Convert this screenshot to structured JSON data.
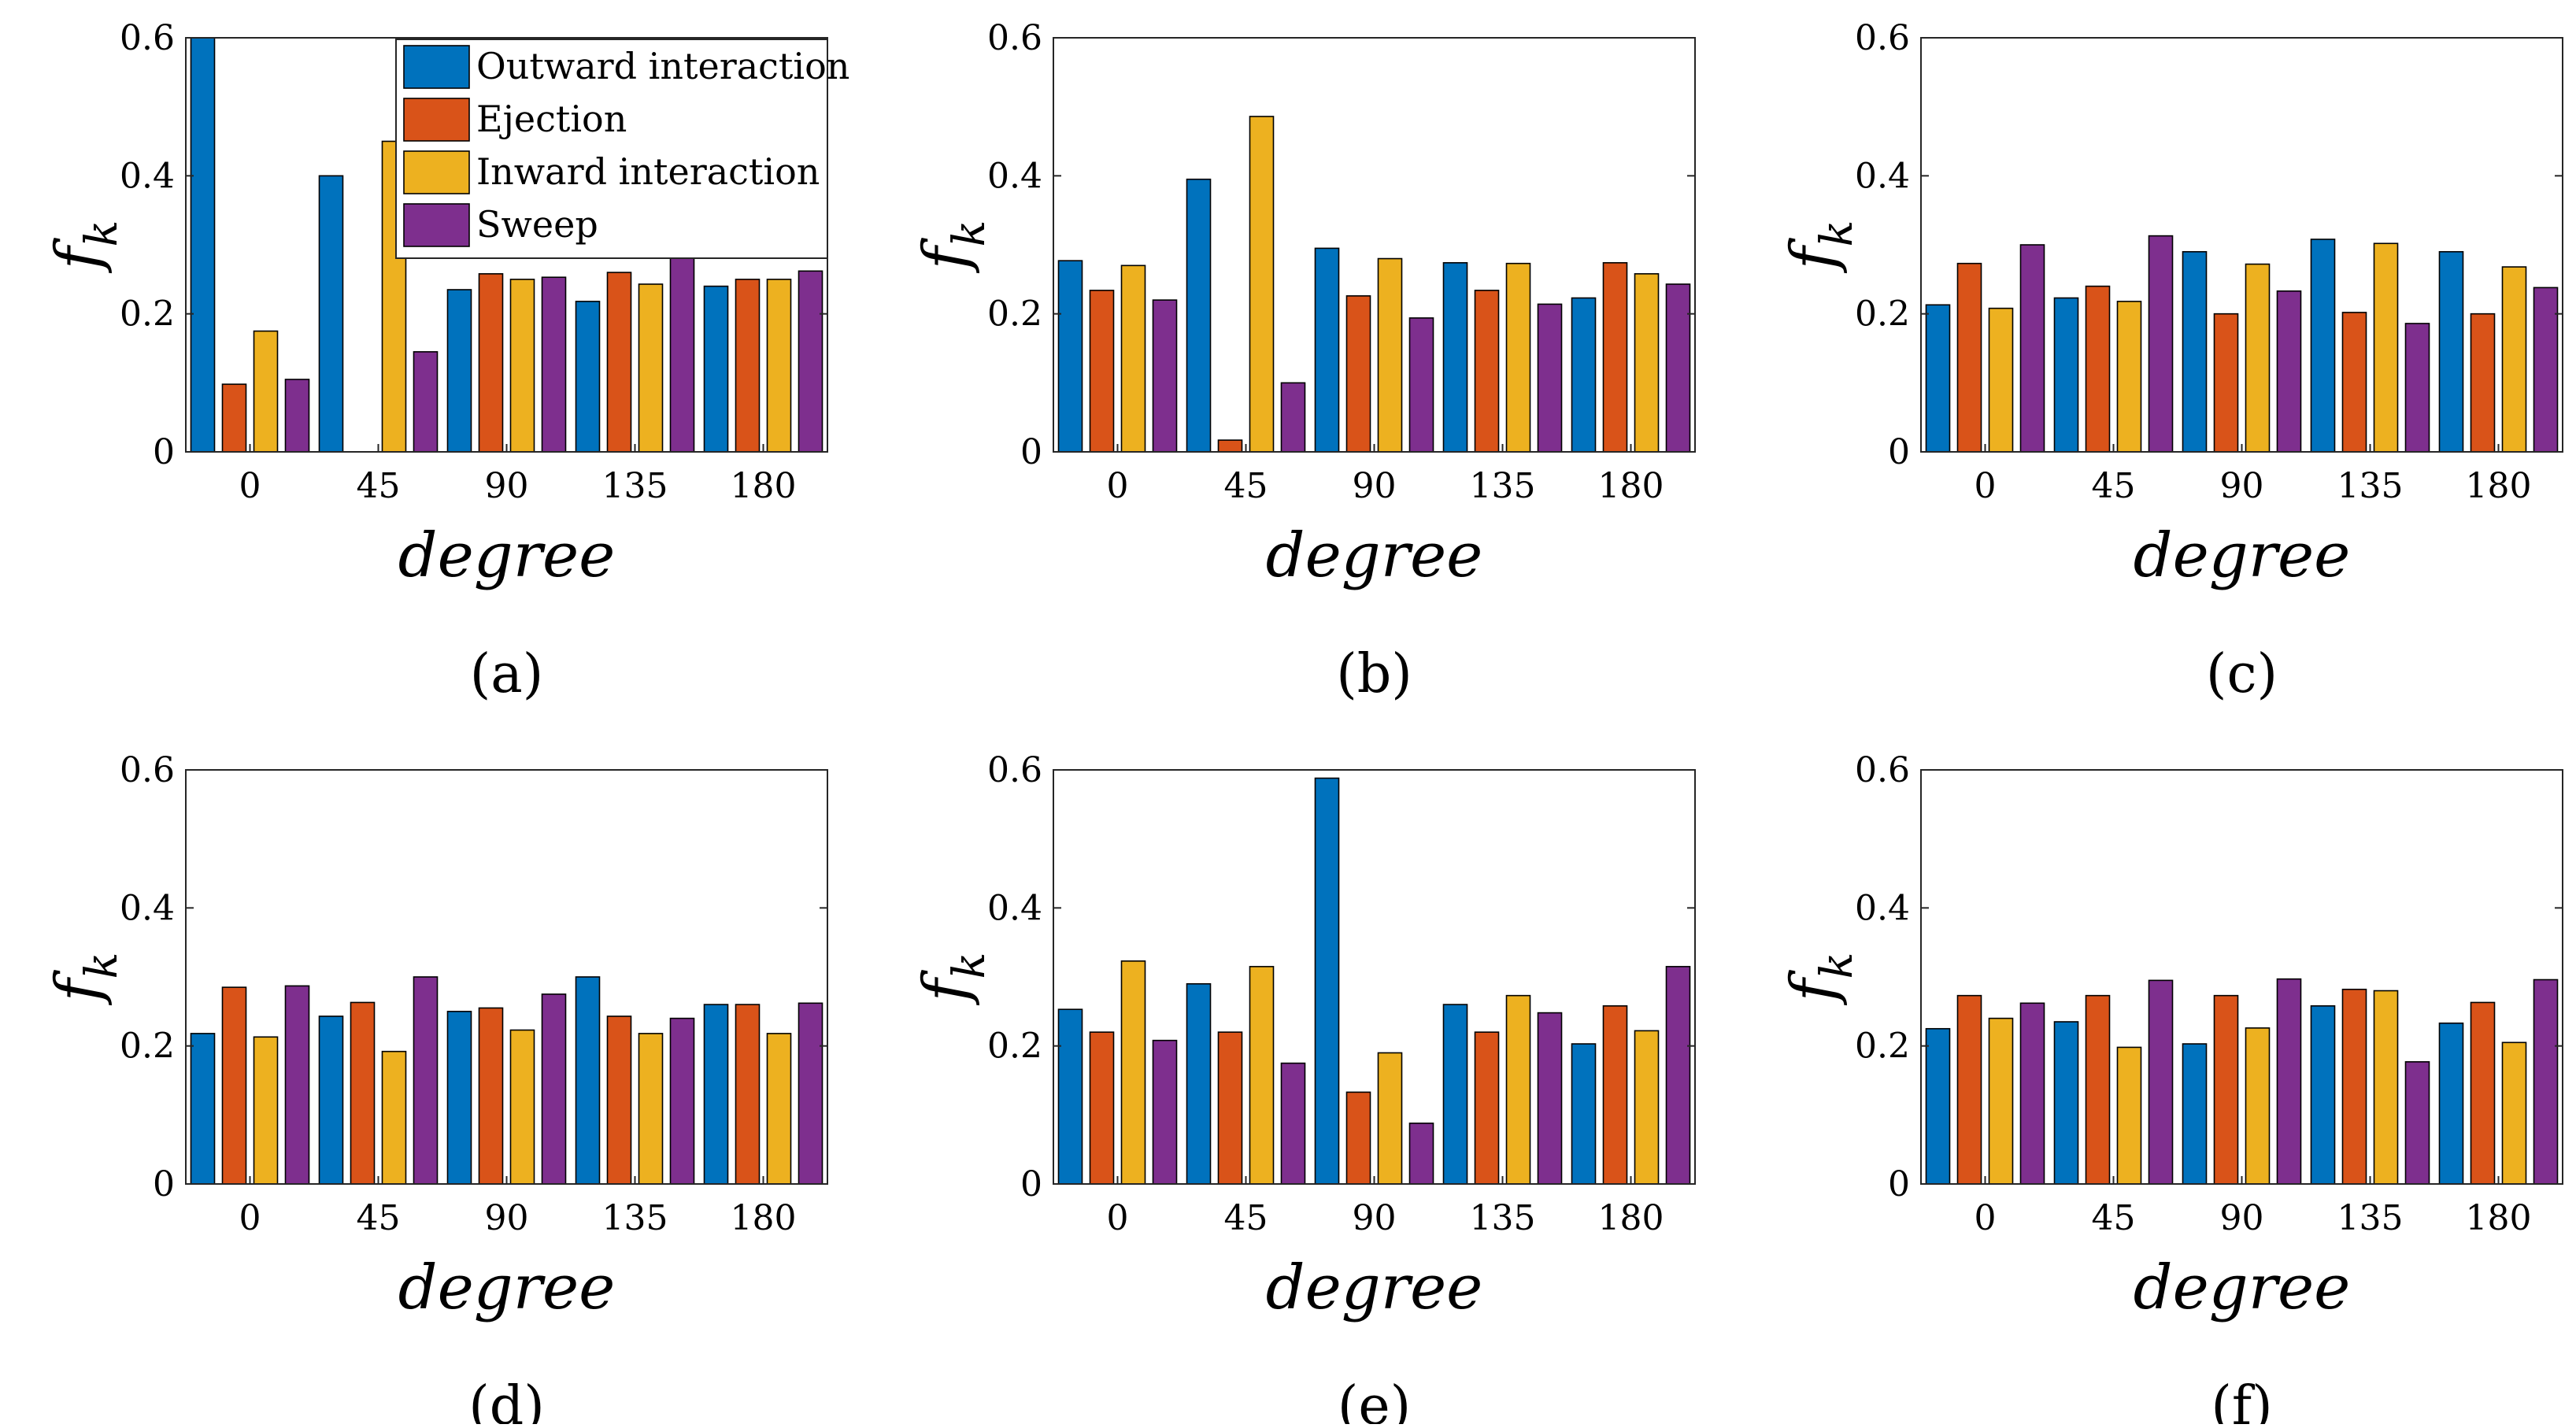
{
  "figure": {
    "series_names": [
      "Outward interaction",
      "Ejection",
      "Inward interaction",
      "Sweep"
    ],
    "colors": [
      "#0072BD",
      "#D95319",
      "#EDB120",
      "#7E2F8E"
    ]
  },
  "chart_data": [
    {
      "type": "bar",
      "caption": "(a)",
      "xlabel": "degree",
      "ylabel": "f_k",
      "ylabel_main": "f",
      "ylabel_sub": "k",
      "categories": [
        "0",
        "45",
        "90",
        "135",
        "180"
      ],
      "ylim": [
        0,
        0.6
      ],
      "yticks": [
        "0",
        "0.2",
        "0.4",
        "0.6"
      ],
      "legend": "top-right",
      "series": [
        {
          "name": "Outward interaction",
          "values": [
            0.6,
            0.4,
            0.235,
            0.218,
            0.24
          ]
        },
        {
          "name": "Ejection",
          "values": [
            0.098,
            0.0,
            0.258,
            0.26,
            0.25
          ]
        },
        {
          "name": "Inward interaction",
          "values": [
            0.175,
            0.45,
            0.25,
            0.243,
            0.25
          ]
        },
        {
          "name": "Sweep",
          "values": [
            0.105,
            0.145,
            0.253,
            0.283,
            0.262
          ]
        }
      ]
    },
    {
      "type": "bar",
      "caption": "(b)",
      "xlabel": "degree",
      "ylabel": "f_k",
      "ylabel_main": "f",
      "ylabel_sub": "k",
      "categories": [
        "0",
        "45",
        "90",
        "135",
        "180"
      ],
      "ylim": [
        0,
        0.6
      ],
      "yticks": [
        "0",
        "0.2",
        "0.4",
        "0.6"
      ],
      "series": [
        {
          "name": "Outward interaction",
          "values": [
            0.277,
            0.395,
            0.295,
            0.274,
            0.223
          ]
        },
        {
          "name": "Ejection",
          "values": [
            0.234,
            0.017,
            0.226,
            0.234,
            0.274
          ]
        },
        {
          "name": "Inward interaction",
          "values": [
            0.27,
            0.486,
            0.28,
            0.273,
            0.258
          ]
        },
        {
          "name": "Sweep",
          "values": [
            0.22,
            0.1,
            0.194,
            0.214,
            0.243
          ]
        }
      ]
    },
    {
      "type": "bar",
      "caption": "(c)",
      "xlabel": "degree",
      "ylabel": "f_k",
      "ylabel_main": "f",
      "ylabel_sub": "k",
      "categories": [
        "0",
        "45",
        "90",
        "135",
        "180"
      ],
      "ylim": [
        0,
        0.6
      ],
      "yticks": [
        "0",
        "0.2",
        "0.4",
        "0.6"
      ],
      "series": [
        {
          "name": "Outward interaction",
          "values": [
            0.213,
            0.223,
            0.29,
            0.308,
            0.29
          ]
        },
        {
          "name": "Ejection",
          "values": [
            0.273,
            0.24,
            0.2,
            0.202,
            0.2
          ]
        },
        {
          "name": "Inward interaction",
          "values": [
            0.208,
            0.218,
            0.272,
            0.302,
            0.268
          ]
        },
        {
          "name": "Sweep",
          "values": [
            0.3,
            0.313,
            0.233,
            0.186,
            0.238
          ]
        }
      ]
    },
    {
      "type": "bar",
      "caption": "(d)",
      "xlabel": "degree",
      "ylabel": "f_k",
      "ylabel_main": "f",
      "ylabel_sub": "k",
      "categories": [
        "0",
        "45",
        "90",
        "135",
        "180"
      ],
      "ylim": [
        0,
        0.6
      ],
      "yticks": [
        "0",
        "0.2",
        "0.4",
        "0.6"
      ],
      "series": [
        {
          "name": "Outward interaction",
          "values": [
            0.218,
            0.243,
            0.25,
            0.3,
            0.26
          ]
        },
        {
          "name": "Ejection",
          "values": [
            0.285,
            0.263,
            0.255,
            0.243,
            0.26
          ]
        },
        {
          "name": "Inward interaction",
          "values": [
            0.213,
            0.192,
            0.223,
            0.218,
            0.218
          ]
        },
        {
          "name": "Sweep",
          "values": [
            0.287,
            0.3,
            0.275,
            0.24,
            0.262
          ]
        }
      ]
    },
    {
      "type": "bar",
      "caption": "(e)",
      "xlabel": "degree",
      "ylabel": "f_k",
      "ylabel_main": "f",
      "ylabel_sub": "k",
      "categories": [
        "0",
        "45",
        "90",
        "135",
        "180"
      ],
      "ylim": [
        0,
        0.6
      ],
      "yticks": [
        "0",
        "0.2",
        "0.4",
        "0.6"
      ],
      "series": [
        {
          "name": "Outward interaction",
          "values": [
            0.253,
            0.29,
            0.588,
            0.26,
            0.203
          ]
        },
        {
          "name": "Ejection",
          "values": [
            0.22,
            0.22,
            0.133,
            0.22,
            0.258
          ]
        },
        {
          "name": "Inward interaction",
          "values": [
            0.323,
            0.315,
            0.19,
            0.273,
            0.222
          ]
        },
        {
          "name": "Sweep",
          "values": [
            0.208,
            0.175,
            0.088,
            0.248,
            0.315
          ]
        }
      ]
    },
    {
      "type": "bar",
      "caption": "(f)",
      "xlabel": "degree",
      "ylabel": "f_k",
      "ylabel_main": "f",
      "ylabel_sub": "k",
      "categories": [
        "0",
        "45",
        "90",
        "135",
        "180"
      ],
      "ylim": [
        0,
        0.6
      ],
      "yticks": [
        "0",
        "0.2",
        "0.4",
        "0.6"
      ],
      "series": [
        {
          "name": "Outward interaction",
          "values": [
            0.225,
            0.235,
            0.203,
            0.258,
            0.233
          ]
        },
        {
          "name": "Ejection",
          "values": [
            0.273,
            0.273,
            0.273,
            0.282,
            0.263
          ]
        },
        {
          "name": "Inward interaction",
          "values": [
            0.24,
            0.198,
            0.226,
            0.28,
            0.205
          ]
        },
        {
          "name": "Sweep",
          "values": [
            0.262,
            0.295,
            0.297,
            0.177,
            0.296
          ]
        }
      ]
    }
  ]
}
